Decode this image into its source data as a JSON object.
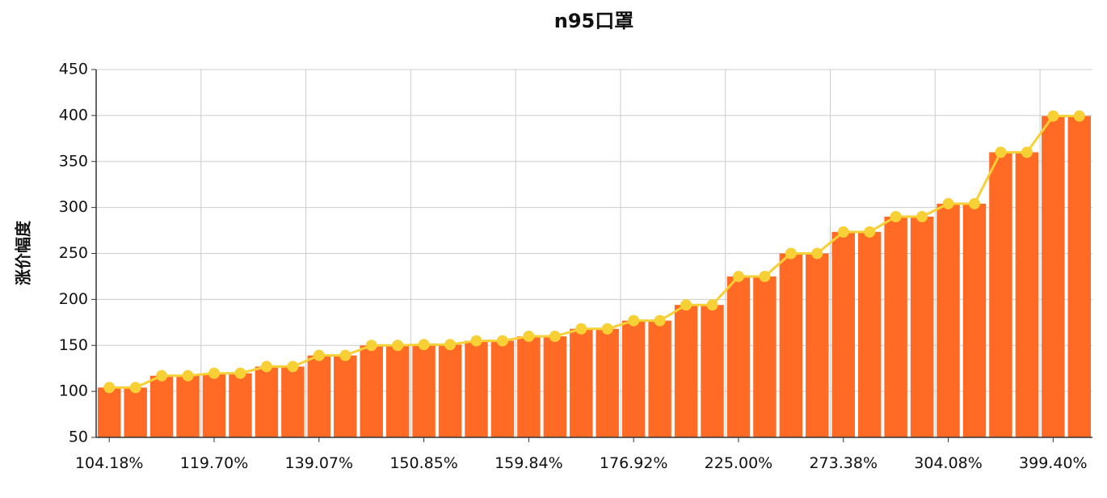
{
  "chart_data": {
    "type": "bar",
    "title": "n95口罩",
    "xlabel": "",
    "ylabel": "涨价幅度",
    "ylim": [
      50,
      450
    ],
    "yticks": [
      50,
      100,
      150,
      200,
      250,
      300,
      350,
      400,
      450
    ],
    "xtick_labels": [
      "104.18%",
      "119.70%",
      "139.07%",
      "150.85%",
      "159.84%",
      "176.92%",
      "225.00%",
      "273.38%",
      "304.08%",
      "399.40%"
    ],
    "grid": true,
    "colors": {
      "bar": "#ff6a24",
      "line": "#f7d035",
      "grid": "#cccccc",
      "axis": "#333333"
    },
    "series": [
      {
        "type": "bar",
        "values": [
          104.18,
          104.18,
          117.0,
          117.0,
          119.7,
          119.7,
          127.0,
          127.0,
          139.07,
          139.07,
          150.0,
          150.0,
          150.85,
          150.85,
          155.0,
          155.0,
          159.84,
          159.84,
          168.0,
          168.0,
          176.92,
          176.92,
          194.0,
          194.0,
          225.0,
          225.0,
          250.0,
          250.0,
          273.38,
          273.38,
          290.0,
          290.0,
          304.08,
          304.08,
          360.0,
          360.0,
          399.4,
          399.4
        ]
      },
      {
        "type": "line",
        "values": [
          104.18,
          104.18,
          117.0,
          117.0,
          119.7,
          119.7,
          127.0,
          127.0,
          139.07,
          139.07,
          150.0,
          150.0,
          150.85,
          150.85,
          155.0,
          155.0,
          159.84,
          159.84,
          168.0,
          168.0,
          176.92,
          176.92,
          194.0,
          194.0,
          225.0,
          225.0,
          250.0,
          250.0,
          273.38,
          273.38,
          290.0,
          290.0,
          304.08,
          304.08,
          360.0,
          360.0,
          399.4,
          399.4
        ]
      }
    ]
  }
}
